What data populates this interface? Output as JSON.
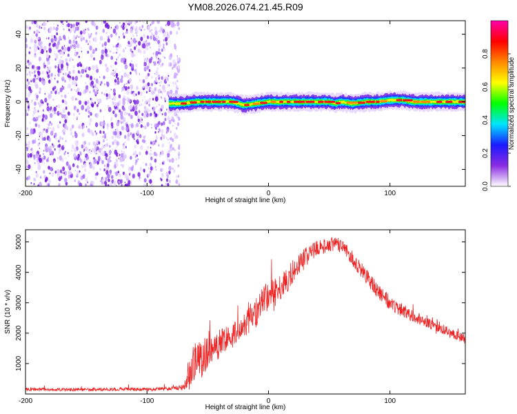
{
  "figure": {
    "title": "YM08.2026.074.21.45.R09"
  },
  "chart_data": [
    {
      "type": "heatmap",
      "title": "YM08.2026.074.21.45.R09",
      "xlabel": "Height of straight line (km)",
      "ylabel": "Frequency (Hz)",
      "xlim": [
        -200,
        162
      ],
      "ylim": [
        -50,
        48
      ],
      "x_ticks": [
        -200,
        -100,
        0,
        100
      ],
      "y_ticks": [
        -40,
        -20,
        0,
        20,
        40
      ],
      "grid": false,
      "noise_region_x": [
        -200,
        -78
      ],
      "signal_region_x": [
        -82,
        162
      ],
      "signal_track": {
        "x": [
          -82,
          -70,
          -60,
          -50,
          -40,
          -30,
          -20,
          -10,
          0,
          10,
          20,
          30,
          40,
          50,
          55,
          60,
          70,
          80,
          90,
          100,
          110,
          120,
          130,
          140,
          150,
          162
        ],
        "freq": [
          -1,
          -1,
          0,
          0,
          0,
          0,
          -2,
          -1,
          0,
          0,
          0,
          0,
          0,
          0,
          -1,
          0,
          -1,
          0,
          0,
          1,
          1,
          0,
          0,
          0,
          0,
          0
        ]
      },
      "colorbar": {
        "label": "Normalized spectral amplitude",
        "range": [
          0,
          1
        ],
        "ticks": [
          0.0,
          0.2,
          0.4,
          0.6,
          0.8
        ],
        "tick_labels": [
          "0.0",
          "0.2",
          "0.4",
          "0.6",
          "0.8"
        ],
        "colormap": [
          "#ffffff",
          "#8a2be2",
          "#1a1aff",
          "#00e5ff",
          "#00ff00",
          "#ffff00",
          "#ff8800",
          "#ff0000",
          "#ff00aa"
        ]
      }
    },
    {
      "type": "line",
      "xlabel": "Height of straight line (km)",
      "ylabel": "SNR (10 * v/v)",
      "xlim": [
        -200,
        162
      ],
      "ylim": [
        0,
        5400
      ],
      "x_ticks": [
        -200,
        -100,
        0,
        100
      ],
      "y_ticks": [
        1000,
        2000,
        3000,
        4000,
        5000
      ],
      "grid": false,
      "series": [
        {
          "color": "#ee2222",
          "envelope": {
            "x": [
              -200,
              -180,
              -160,
              -140,
              -120,
              -100,
              -80,
              -70,
              -65,
              -60,
              -55,
              -50,
              -45,
              -40,
              -30,
              -20,
              -15,
              -10,
              -5,
              0,
              10,
              20,
              30,
              40,
              50,
              55,
              60,
              65,
              70,
              80,
              90,
              100,
              110,
              120,
              130,
              140,
              150,
              162
            ],
            "y": [
              150,
              150,
              140,
              150,
              160,
              150,
              180,
              230,
              600,
              1300,
              1200,
              1350,
              1500,
              1650,
              1900,
              2300,
              2500,
              2700,
              3000,
              3200,
              3500,
              4000,
              4500,
              4800,
              4900,
              4950,
              4850,
              4700,
              4400,
              3900,
              3400,
              3000,
              2750,
              2550,
              2350,
              2200,
              2000,
              1800
            ]
          },
          "spread": {
            "x": [
              -200,
              -80,
              -70,
              -60,
              -50,
              -30,
              -10,
              0,
              20,
              40,
              60,
              80,
              100,
              130,
              162
            ],
            "y": [
              100,
              120,
              200,
              1700,
              1100,
              800,
              1000,
              1100,
              800,
              500,
              450,
              500,
              500,
              350,
              300
            ]
          }
        }
      ]
    }
  ]
}
